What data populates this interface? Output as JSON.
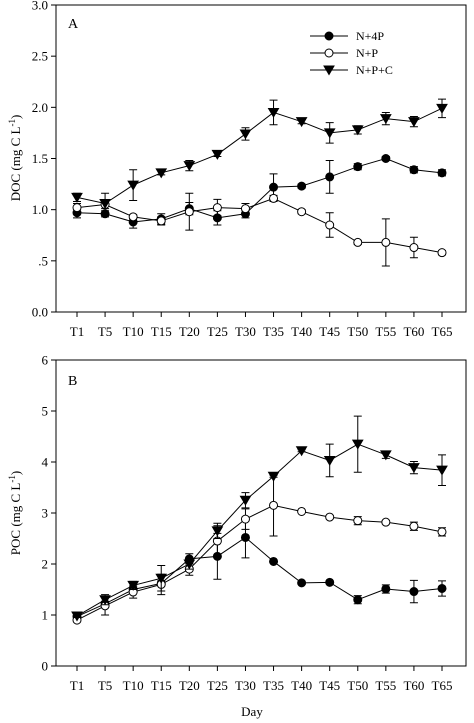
{
  "figure": {
    "xlabel_bottom": "Day"
  },
  "chart_data": [
    {
      "type": "line",
      "panel_label": "A",
      "ylabel_main": "DOC (mg C L",
      "ylabel_sup": "-1",
      "ylabel_close": ")",
      "categories": [
        "T1",
        "T5",
        "T10",
        "T15",
        "T20",
        "T25",
        "T30",
        "T35",
        "T40",
        "T45",
        "T50",
        "T55",
        "T60",
        "T65"
      ],
      "ylim": [
        0,
        3.0
      ],
      "yticks": [
        0,
        0.5,
        1.0,
        1.5,
        2.0,
        2.5,
        3.0
      ],
      "ytick_labels": [
        "0.0",
        ".5",
        "1.0",
        "1.5",
        "2.0",
        "2.5",
        "3.0"
      ],
      "legend_position": "top-right",
      "series": [
        {
          "name": "N+4P",
          "marker": "filled-circle",
          "values": [
            0.97,
            0.96,
            0.88,
            0.91,
            1.01,
            0.92,
            0.96,
            1.22,
            1.23,
            1.32,
            1.42,
            1.5,
            1.39,
            1.36
          ],
          "errors": [
            0.05,
            0.03,
            0.06,
            0.05,
            0.06,
            0.07,
            0.04,
            0.13,
            0.02,
            0.16,
            0.03,
            0.02,
            0.03,
            0.03
          ]
        },
        {
          "name": "N+P",
          "marker": "open-circle",
          "values": [
            1.02,
            1.05,
            0.93,
            0.89,
            0.98,
            1.02,
            1.01,
            1.11,
            0.98,
            0.85,
            0.68,
            0.68,
            0.63,
            0.58
          ],
          "errors": [
            0.04,
            0.04,
            0.02,
            0.04,
            0.18,
            0.08,
            0.05,
            0.03,
            0.02,
            0.12,
            0.02,
            0.23,
            0.1,
            0.02
          ]
        },
        {
          "name": "N+P+C",
          "marker": "filled-triangle-down",
          "values": [
            1.12,
            1.06,
            1.24,
            1.36,
            1.43,
            1.54,
            1.74,
            1.95,
            1.86,
            1.75,
            1.78,
            1.89,
            1.86,
            1.99
          ],
          "errors": [
            0.04,
            0.1,
            0.15,
            0.02,
            0.05,
            0.02,
            0.06,
            0.12,
            0.02,
            0.1,
            0.04,
            0.06,
            0.05,
            0.09
          ]
        }
      ]
    },
    {
      "type": "line",
      "panel_label": "B",
      "ylabel_main": "POC (mg C L",
      "ylabel_sup": "-1",
      "ylabel_close": ")",
      "categories": [
        "T1",
        "T5",
        "T10",
        "T15",
        "T20",
        "T25",
        "T30",
        "T35",
        "T40",
        "T45",
        "T50",
        "T55",
        "T60",
        "T65"
      ],
      "ylim": [
        0,
        6
      ],
      "yticks": [
        0,
        1,
        2,
        3,
        4,
        5,
        6
      ],
      "ytick_labels": [
        "0",
        "1",
        "2",
        "3",
        "4",
        "5",
        "6"
      ],
      "legend_position": "none",
      "series": [
        {
          "marker": "filled-circle",
          "values": [
            0.97,
            1.22,
            1.5,
            1.62,
            2.1,
            2.15,
            2.52,
            2.05,
            1.63,
            1.64,
            1.3,
            1.51,
            1.46,
            1.52
          ],
          "errors": [
            0.03,
            0.05,
            0.05,
            0.05,
            0.1,
            0.45,
            0.4,
            0.02,
            0.02,
            0.02,
            0.08,
            0.08,
            0.22,
            0.15
          ]
        },
        {
          "marker": "open-circle",
          "values": [
            0.9,
            1.18,
            1.45,
            1.6,
            1.9,
            2.45,
            2.88,
            3.15,
            3.03,
            2.92,
            2.85,
            2.82,
            2.74,
            2.63
          ],
          "errors": [
            0.03,
            0.18,
            0.12,
            0.2,
            0.12,
            0.3,
            0.2,
            0.6,
            0.02,
            0.02,
            0.08,
            0.03,
            0.08,
            0.08
          ]
        },
        {
          "marker": "filled-triangle-down",
          "values": [
            0.98,
            1.3,
            1.58,
            1.72,
            2.0,
            2.65,
            3.25,
            3.72,
            4.22,
            4.03,
            4.35,
            4.14,
            3.89,
            3.84
          ],
          "errors": [
            0.03,
            0.1,
            0.08,
            0.25,
            0.1,
            0.15,
            0.15,
            0.02,
            0.02,
            0.32,
            0.55,
            0.07,
            0.12,
            0.3
          ]
        }
      ]
    }
  ]
}
